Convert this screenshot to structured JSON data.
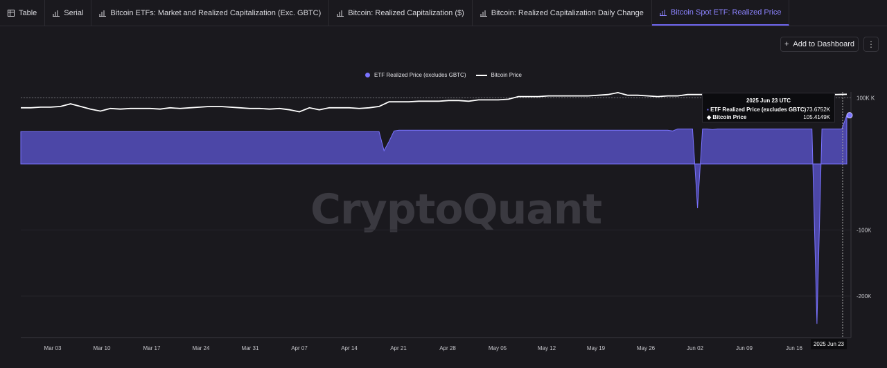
{
  "tabs": [
    {
      "label": "Table",
      "icon": "table-icon",
      "active": false
    },
    {
      "label": "Serial",
      "icon": "bar-chart-icon",
      "active": false
    },
    {
      "label": "Bitcoin ETFs: Market and Realized Capitalization (Exc. GBTC)",
      "icon": "bar-chart-icon",
      "active": false
    },
    {
      "label": "Bitcoin: Realized Capitalization ($)",
      "icon": "bar-chart-icon",
      "active": false
    },
    {
      "label": "Bitcoin: Realized Capitalization Daily Change",
      "icon": "bar-chart-icon",
      "active": false
    },
    {
      "label": "Bitcoin Spot ETF: Realized Price",
      "icon": "bar-chart-icon",
      "active": true
    }
  ],
  "toolbar": {
    "add_dashboard": "Add to Dashboard",
    "more_icon": "kebab-icon"
  },
  "watermark": "CryptoQuant",
  "accent": "#6f66f0",
  "chart_data": {
    "type": "area",
    "title": "",
    "legend_position": "top-center",
    "legend": [
      "ETF Realized Price (excludes GBTC)",
      "Bitcoin Price"
    ],
    "x_ticks": [
      "Mar 03",
      "Mar 10",
      "Mar 17",
      "Mar 24",
      "Mar 31",
      "Apr 07",
      "Apr 14",
      "Apr 21",
      "Apr 28",
      "May 05",
      "May 12",
      "May 19",
      "May 26",
      "Jun 02",
      "Jun 09",
      "Jun 16",
      "2025 Jun 23"
    ],
    "y_ticks": [
      "100K K",
      "-100K",
      "-200K"
    ],
    "crosshair_date": "2025 Jun 23",
    "series": [
      {
        "name": "ETF Realized Price (excludes GBTC)",
        "color": "#5b54c9",
        "values": [
          49,
          49,
          49,
          49,
          49,
          49,
          49,
          49,
          49,
          49,
          49,
          49,
          49,
          49,
          49,
          49,
          49,
          49,
          49,
          49,
          49,
          49,
          49,
          49,
          49,
          49,
          49,
          49,
          49,
          49,
          49,
          49,
          49,
          49,
          49,
          49,
          49,
          49,
          49,
          49,
          49,
          49,
          49,
          49,
          49,
          49,
          49,
          49,
          49,
          49,
          49,
          49,
          49,
          49,
          49,
          49,
          49,
          49,
          49,
          49,
          49,
          49,
          49,
          49,
          49,
          49,
          49,
          49,
          49,
          49,
          49,
          49,
          49,
          20,
          34,
          50,
          51,
          51,
          51,
          51,
          51,
          51,
          51,
          51,
          51,
          51,
          51,
          51,
          51,
          51,
          51,
          51,
          51,
          51,
          51,
          51,
          51,
          51,
          51,
          51,
          51,
          51,
          51,
          51,
          51,
          51,
          51,
          51,
          51,
          51,
          51,
          51,
          51,
          51,
          51,
          51,
          51,
          51,
          51,
          51,
          51,
          51,
          51,
          51,
          51,
          51,
          51,
          51,
          51,
          51,
          51,
          50,
          53,
          53,
          53,
          53,
          -67,
          53,
          53,
          52,
          53,
          53,
          53,
          53,
          53,
          53,
          53,
          53,
          53,
          53,
          53,
          53,
          53,
          53,
          53,
          53,
          53,
          53,
          53,
          53,
          -242,
          53,
          53,
          53,
          53,
          53,
          73.6752
        ]
      },
      {
        "name": "Bitcoin Price",
        "color": "#ffffff",
        "values": [
          85,
          85,
          86,
          86,
          87,
          91,
          87,
          83,
          80,
          84,
          83,
          84,
          84,
          84,
          83,
          85,
          84,
          85,
          86,
          87,
          87,
          86,
          85,
          84,
          84,
          83,
          84,
          82,
          79,
          85,
          82,
          85,
          85,
          85,
          84,
          85,
          87,
          94,
          94,
          94,
          95,
          95,
          95,
          96,
          96,
          95,
          97,
          97,
          97,
          98,
          102,
          102,
          102,
          103,
          103,
          103,
          103,
          103,
          104,
          105,
          108,
          104,
          104,
          103,
          102,
          103,
          103,
          105,
          105,
          105,
          105,
          105,
          105,
          105,
          105,
          105,
          105,
          105,
          105,
          105,
          105,
          105,
          105,
          105.4149
        ]
      }
    ]
  },
  "tooltip": {
    "title": "2025 Jun 23 UTC",
    "rows": [
      {
        "label": "ETF Realized Price (excludes GBTC)",
        "value": "73.6752K"
      },
      {
        "label": "Bitcoin Price",
        "value": "105.4149K"
      }
    ]
  }
}
